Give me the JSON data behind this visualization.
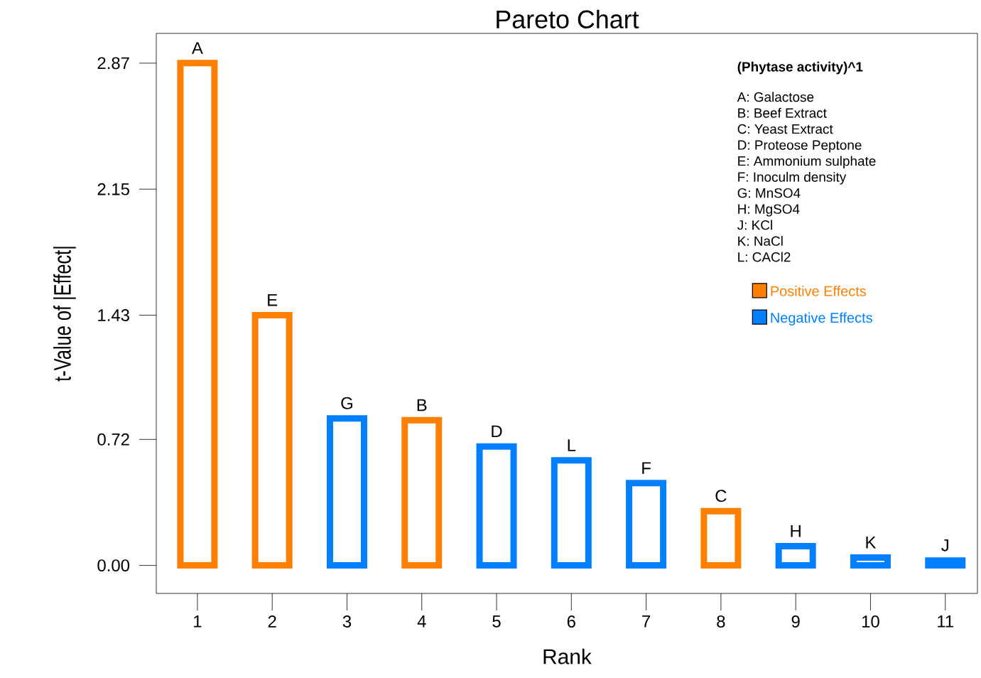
{
  "chart_data": {
    "type": "bar",
    "title": "Pareto Chart",
    "xlabel": "Rank",
    "ylabel": "t-Value of |Effect|",
    "categories": [
      "1",
      "2",
      "3",
      "4",
      "5",
      "6",
      "7",
      "8",
      "9",
      "10",
      "11"
    ],
    "series": [
      {
        "name": "Positive Effects",
        "color": "#ff7f00",
        "values": [
          2.87,
          1.43,
          null,
          0.83,
          null,
          null,
          null,
          0.31,
          null,
          null,
          null
        ]
      },
      {
        "name": "Negative Effects",
        "color": "#0080ff",
        "values": [
          null,
          null,
          0.84,
          null,
          0.68,
          0.6,
          0.47,
          null,
          0.11,
          0.045,
          0.028
        ]
      }
    ],
    "ylim": [
      -0.16,
      3.04
    ],
    "yticks": [
      {
        "value": 0,
        "label": "0.00"
      },
      {
        "value": 0.72,
        "label": "0.72"
      },
      {
        "value": 1.43,
        "label": "1.43"
      },
      {
        "value": 2.15,
        "label": "2.15"
      },
      {
        "value": 2.87,
        "label": "2.87"
      }
    ],
    "legend": "top right",
    "legend_title": "(Phytase activity)^1",
    "grid": false,
    "annotations": [
      {
        "text": "A",
        "x": "1",
        "y": 2.87
      },
      {
        "text": "E",
        "x": "2",
        "y": 1.43
      },
      {
        "text": "G",
        "x": "3",
        "y": 0.84
      },
      {
        "text": "B",
        "x": "4",
        "y": 0.83
      },
      {
        "text": "D",
        "x": "5",
        "y": 0.68
      },
      {
        "text": "L",
        "x": "6",
        "y": 0.6
      },
      {
        "text": "F",
        "x": "7",
        "y": 0.47
      },
      {
        "text": "C",
        "x": "8",
        "y": 0.31
      },
      {
        "text": "H",
        "x": "9",
        "y": 0.11
      },
      {
        "text": "K",
        "x": "10",
        "y": 0.045
      },
      {
        "text": "J",
        "x": "11",
        "y": 0.028
      },
      "A: Galactose",
      "B: Beef Extract",
      "C: Yeast Extract",
      "D: Proteose Peptone",
      "E: Ammonium sulphate",
      "F: Inoculm density",
      "G: MnSO4",
      "H: MgSO4",
      "J: KCl",
      "K: NaCl",
      "L: CACl2"
    ]
  }
}
